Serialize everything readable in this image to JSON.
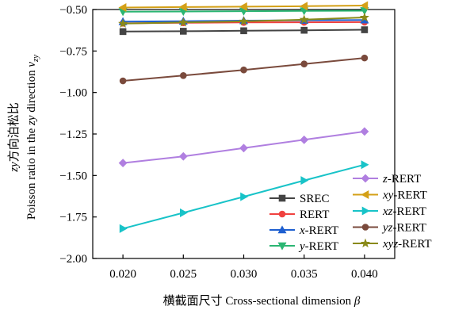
{
  "chart_data": {
    "type": "line",
    "xlabel": "横截面尺寸 Cross-sectional dimension β",
    "ylabel_line1": "zy方向泊松比",
    "ylabel_line2": "Poisson ratio in the zy direction ν",
    "ylabel_subscript": "zy",
    "x": [
      0.02,
      0.025,
      0.03,
      0.035,
      0.04
    ],
    "xticks": [
      "0.020",
      "0.025",
      "0.030",
      "0.035",
      "0.040"
    ],
    "yticks": [
      "−0.50",
      "−0.75",
      "−1.00",
      "−1.25",
      "−1.50",
      "−1.75",
      "−2.00"
    ],
    "ytick_values": [
      -0.5,
      -0.75,
      -1.0,
      -1.25,
      -1.5,
      -1.75,
      -2.0
    ],
    "xlim": [
      0.0175,
      0.0425
    ],
    "ylim": [
      -2.0,
      -0.5
    ],
    "grid": false,
    "series": [
      {
        "name": "SREC",
        "em": "",
        "suffix": "SREC",
        "color": "#444444",
        "marker": "square",
        "values": [
          -0.633,
          -0.631,
          -0.628,
          -0.625,
          -0.622
        ]
      },
      {
        "name": "RERT",
        "em": "",
        "suffix": "RERT",
        "color": "#f0413f",
        "marker": "circle",
        "values": [
          -0.583,
          -0.58,
          -0.578,
          -0.577,
          -0.576
        ]
      },
      {
        "name": "x-RERT",
        "em": "x",
        "suffix": "-RERT",
        "color": "#1e5fd0",
        "marker": "triup",
        "values": [
          -0.573,
          -0.57,
          -0.567,
          -0.565,
          -0.563
        ]
      },
      {
        "name": "y-RERT",
        "em": "y",
        "suffix": "-RERT",
        "color": "#2bb673",
        "marker": "tridown",
        "values": [
          -0.513,
          -0.512,
          -0.51,
          -0.508,
          -0.507
        ]
      },
      {
        "name": "z-RERT",
        "em": "z",
        "suffix": "-RERT",
        "color": "#b07fe0",
        "marker": "diamond",
        "values": [
          -1.425,
          -1.385,
          -1.335,
          -1.285,
          -1.235
        ]
      },
      {
        "name": "xy-RERT",
        "em": "xy",
        "suffix": "-RERT",
        "color": "#d4a017",
        "marker": "trileft",
        "values": [
          -0.488,
          -0.485,
          -0.483,
          -0.48,
          -0.476
        ]
      },
      {
        "name": "xz-RERT",
        "em": "xz",
        "suffix": "-RERT",
        "color": "#18c3c8",
        "marker": "triright",
        "values": [
          -1.82,
          -1.725,
          -1.628,
          -1.53,
          -1.435
        ]
      },
      {
        "name": "yz-RERT",
        "em": "yz",
        "suffix": "-RERT",
        "color": "#7a4a3c",
        "marker": "circle",
        "values": [
          -0.93,
          -0.898,
          -0.864,
          -0.828,
          -0.792
        ]
      },
      {
        "name": "xyz-RERT",
        "em": "xyz",
        "suffix": "-RERT",
        "color": "#8a8a1a",
        "marker": "star",
        "values": [
          -0.585,
          -0.578,
          -0.571,
          -0.561,
          -0.548
        ]
      }
    ],
    "legend_left": [
      "SREC",
      "RERT",
      "x-RERT",
      "y-RERT"
    ],
    "legend_right": [
      "z-RERT",
      "xy-RERT",
      "xz-RERT",
      "yz-RERT",
      "xyz-RERT"
    ]
  }
}
